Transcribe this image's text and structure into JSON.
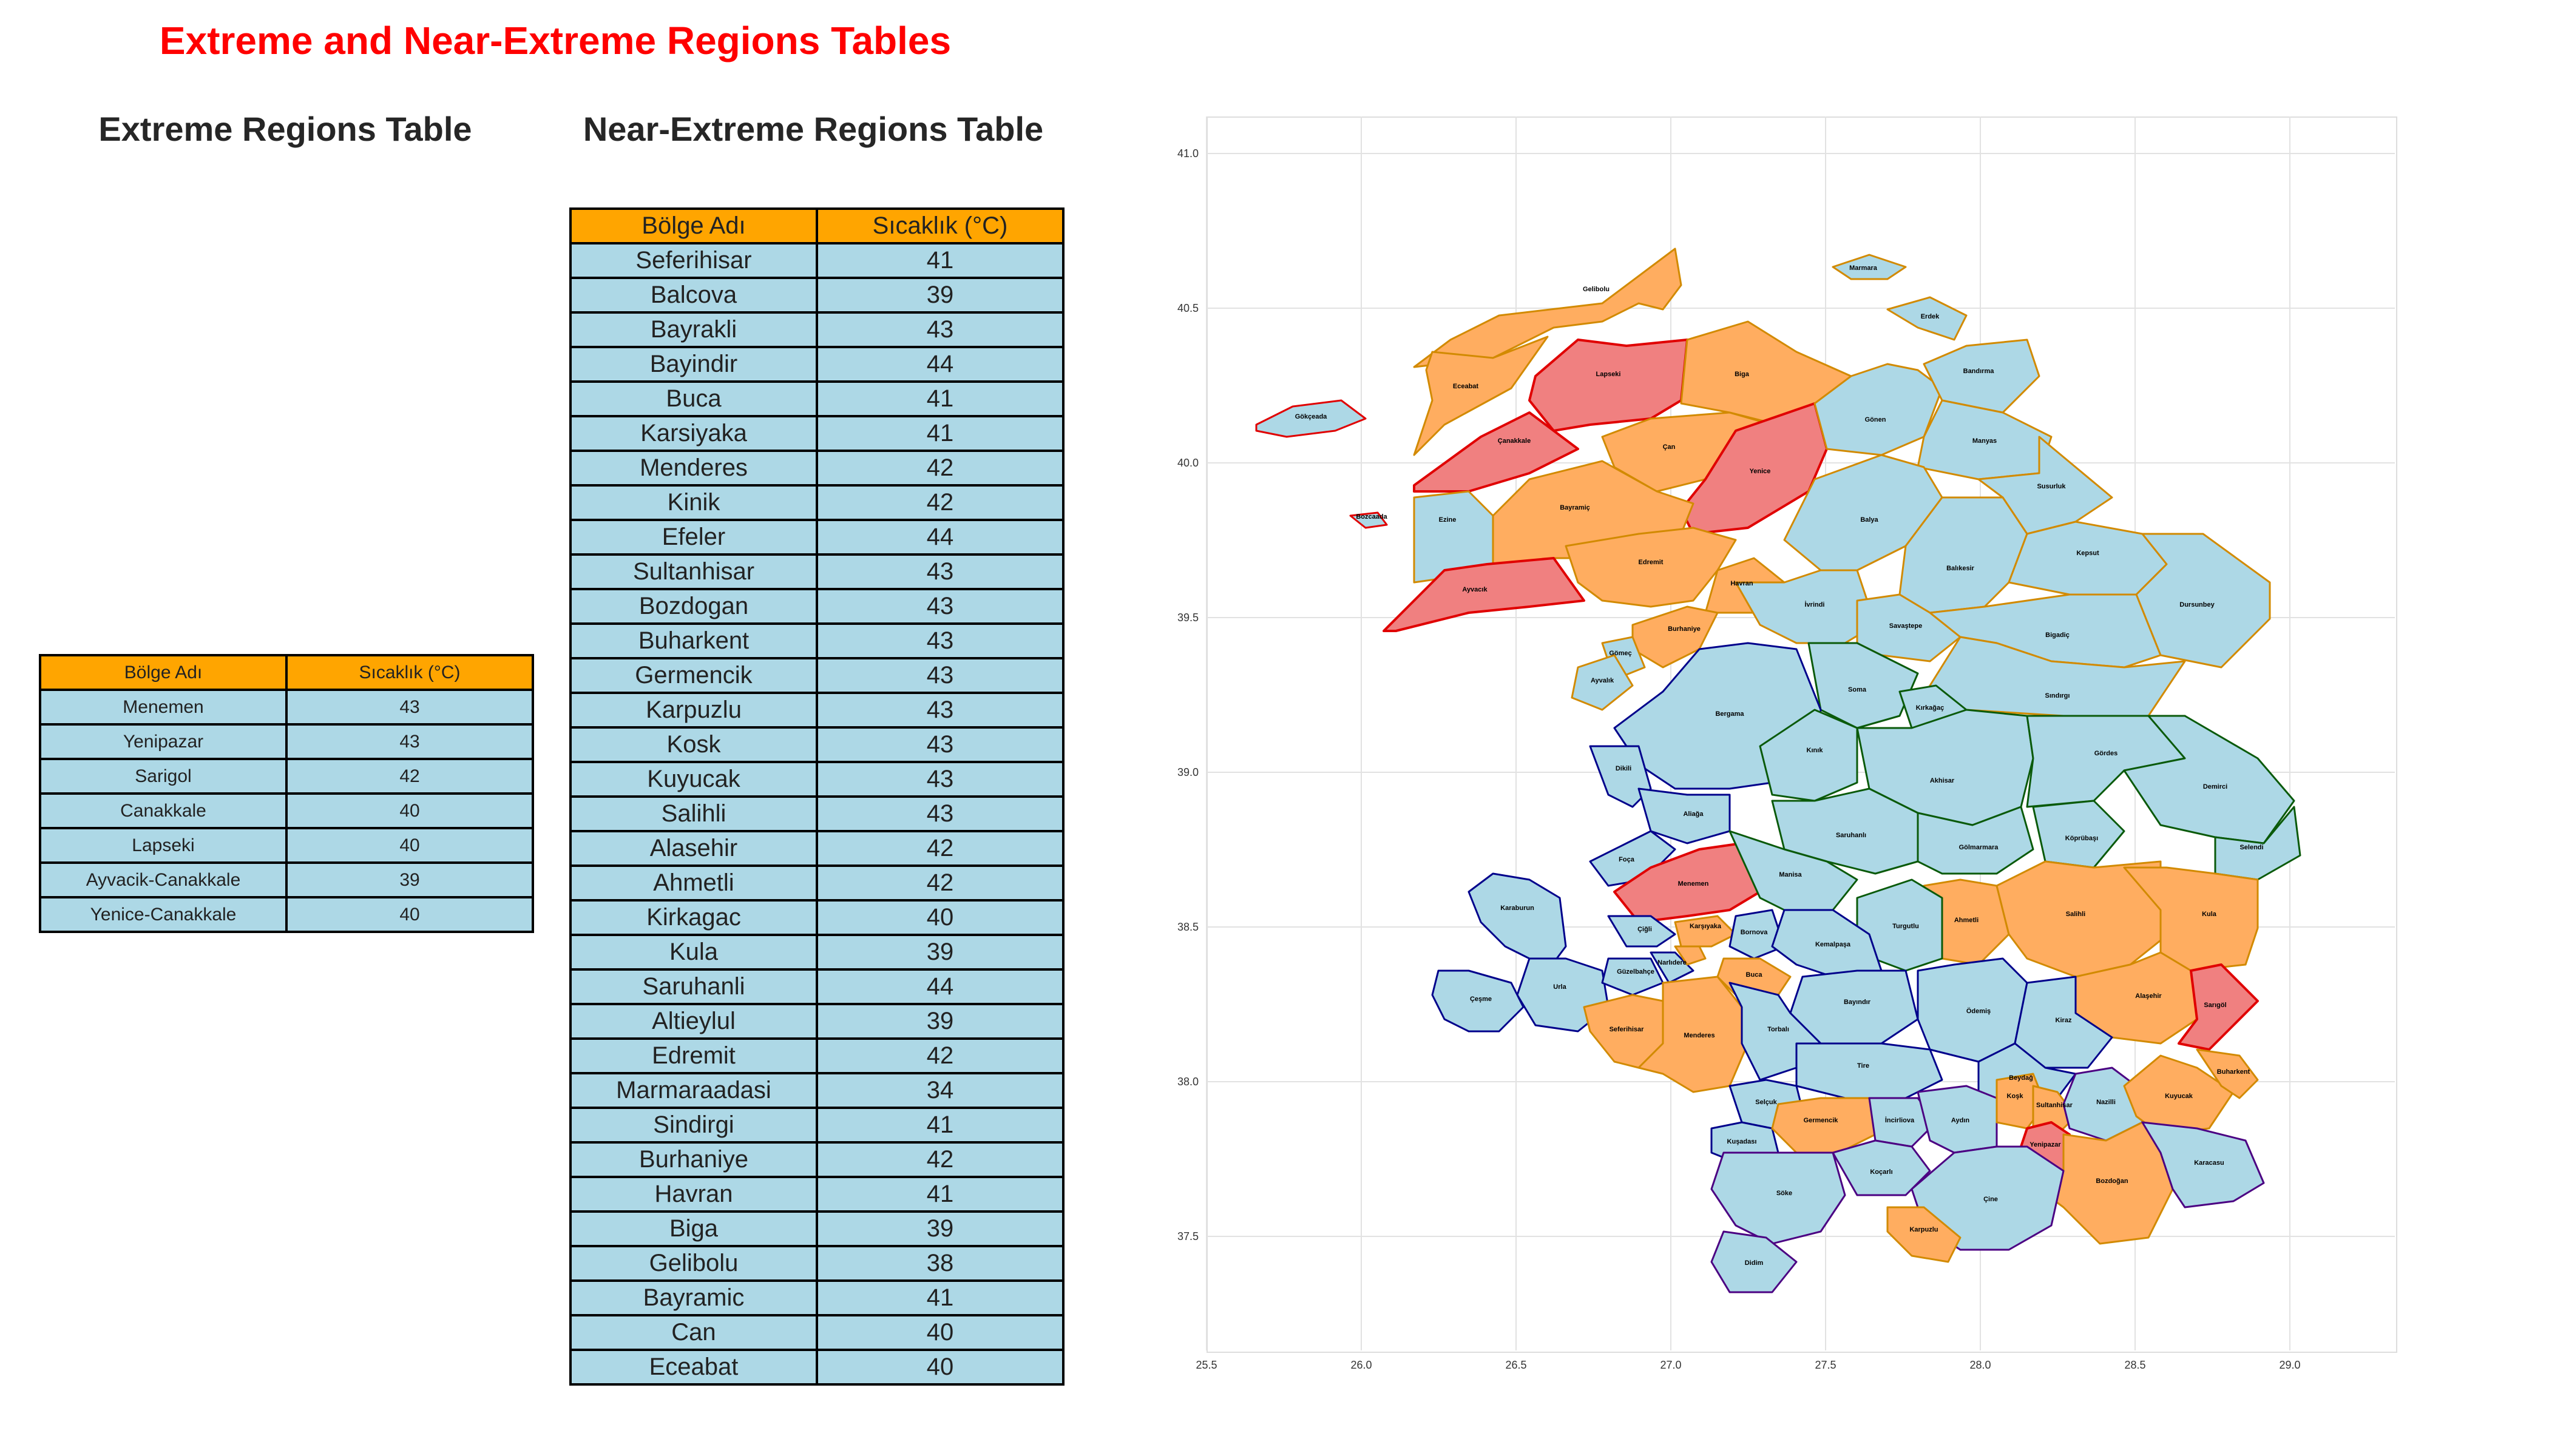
{
  "page_title": "Extreme and Near-Extreme Regions Tables",
  "extreme": {
    "title": "Extreme Regions Table",
    "headers": [
      "Bölge Adı",
      "Sıcaklık (°C)"
    ],
    "rows": [
      [
        "Menemen",
        "43"
      ],
      [
        "Yenipazar",
        "43"
      ],
      [
        "Sarigol",
        "42"
      ],
      [
        "Canakkale",
        "40"
      ],
      [
        "Lapseki",
        "40"
      ],
      [
        "Ayvacik-Canakkale",
        "39"
      ],
      [
        "Yenice-Canakkale",
        "40"
      ]
    ]
  },
  "near_extreme": {
    "title": "Near-Extreme Regions Table",
    "headers": [
      "Bölge Adı",
      "Sıcaklık (°C)"
    ],
    "rows": [
      [
        "Seferihisar",
        "41"
      ],
      [
        "Balcova",
        "39"
      ],
      [
        "Bayrakli",
        "43"
      ],
      [
        "Bayindir",
        "44"
      ],
      [
        "Buca",
        "41"
      ],
      [
        "Karsiyaka",
        "41"
      ],
      [
        "Menderes",
        "42"
      ],
      [
        "Kinik",
        "42"
      ],
      [
        "Efeler",
        "44"
      ],
      [
        "Sultanhisar",
        "43"
      ],
      [
        "Bozdogan",
        "43"
      ],
      [
        "Buharkent",
        "43"
      ],
      [
        "Germencik",
        "43"
      ],
      [
        "Karpuzlu",
        "43"
      ],
      [
        "Kosk",
        "43"
      ],
      [
        "Kuyucak",
        "43"
      ],
      [
        "Salihli",
        "43"
      ],
      [
        "Alasehir",
        "42"
      ],
      [
        "Ahmetli",
        "42"
      ],
      [
        "Kirkagac",
        "40"
      ],
      [
        "Kula",
        "39"
      ],
      [
        "Saruhanli",
        "44"
      ],
      [
        "Altieylul",
        "39"
      ],
      [
        "Edremit",
        "42"
      ],
      [
        "Marmaraadasi",
        "34"
      ],
      [
        "Sindirgi",
        "41"
      ],
      [
        "Burhaniye",
        "42"
      ],
      [
        "Havran",
        "41"
      ],
      [
        "Biga",
        "39"
      ],
      [
        "Gelibolu",
        "38"
      ],
      [
        "Bayramic",
        "41"
      ],
      [
        "Can",
        "40"
      ],
      [
        "Eceabat",
        "40"
      ]
    ]
  },
  "map": {
    "x_ticks": [
      "25.5",
      "26.0",
      "26.5",
      "27.0",
      "27.5",
      "28.0",
      "28.5",
      "29.0"
    ],
    "y_ticks": [
      "41.0",
      "40.5",
      "40.0",
      "39.5",
      "39.0",
      "38.5",
      "38.0",
      "37.5"
    ],
    "colors": {
      "extreme": "#f08080",
      "near_extreme": "#ffad60",
      "normal": "#add8e6",
      "header": "#ffa500",
      "title": "#ff0000"
    },
    "labels": {
      "gelibolu": "Gelibolu",
      "eceabat": "Eceabat",
      "lapseki": "Lapseki",
      "biga": "Biga",
      "canakkale": "Çanakkale",
      "can": "Çan",
      "yenice": "Yenice",
      "bayramic": "Bayramiç",
      "ezine": "Ezine",
      "gokceada": "Gökçeada",
      "bozcaada": "Bozcaada",
      "ayvacik": "Ayvacık",
      "edremit": "Edremit",
      "havran": "Havran",
      "burhaniye": "Burhaniye",
      "gomec": "Gömeç",
      "ayvalik": "Ayvalık",
      "marmara": "Marmara",
      "erdek": "Erdek",
      "gonen": "Gönen",
      "bandirma": "Bandırma",
      "manyas": "Manyas",
      "susurluk": "Susurluk",
      "balya": "Balya",
      "balikesir": "Balıkesir",
      "kepsut": "Kepsut",
      "dursunbey": "Dursunbey",
      "ivrindi": "İvrindi",
      "savastepe": "Savaştepe",
      "bigadic": "Bigadiç",
      "sindirgi": "Sındırgı",
      "soma": "Soma",
      "kirkagac": "Kırkağaç",
      "bergama": "Bergama",
      "kinik": "Kınık",
      "dikili": "Dikili",
      "akhisar": "Akhisar",
      "gordes": "Gördes",
      "demirci": "Demirci",
      "selendi": "Selendi",
      "aliaga": "Aliağa",
      "saruhanli": "Saruhanlı",
      "golmarmara": "Gölmarmara",
      "kopruba": "Köprübaşı",
      "foca": "Foça",
      "menemen": "Menemen",
      "manisa": "Manisa",
      "karaburun": "Karaburun",
      "ahmetli": "Ahmetli",
      "salihli": "Salihli",
      "kula": "Kula",
      "turgutlu": "Turgutlu",
      "cigli": "Çiğli",
      "karsiyaka": "Karşıyaka",
      "bornova": "Bornova",
      "kemalpasa": "Kemalpaşa",
      "urla": "Urla",
      "cesme": "Çeşme",
      "guzelbahce": "Güzelbahçe",
      "narlidere": "Narlıdere",
      "buca": "Buca",
      "alasehir": "Alaşehir",
      "sarigol": "Sarıgöl",
      "bayindir": "Bayındır",
      "odemis": "Ödemiş",
      "kiraz": "Kiraz",
      "seferihisar": "Seferihisar",
      "menderes": "Menderes",
      "torbali": "Torbalı",
      "tire": "Tire",
      "beydag": "Beydağ",
      "selcuk": "Selçuk",
      "kusadasi": "Kuşadası",
      "germencik": "Germencik",
      "incirliova": "İncirliova",
      "aydin": "Aydın",
      "kosk": "Koşk",
      "sultanhisar": "Sultanhisar",
      "nazilli": "Nazilli",
      "kuyucak": "Kuyucak",
      "buharkent": "Buharkent",
      "yenipazar": "Yenipazar",
      "bozdogan": "Bozdoğan",
      "karacasu": "Karacasu",
      "koccarli": "Koçarlı",
      "soke": "Söke",
      "cine": "Çine",
      "karpuzlu": "Karpuzlu",
      "didim": "Didim"
    }
  }
}
